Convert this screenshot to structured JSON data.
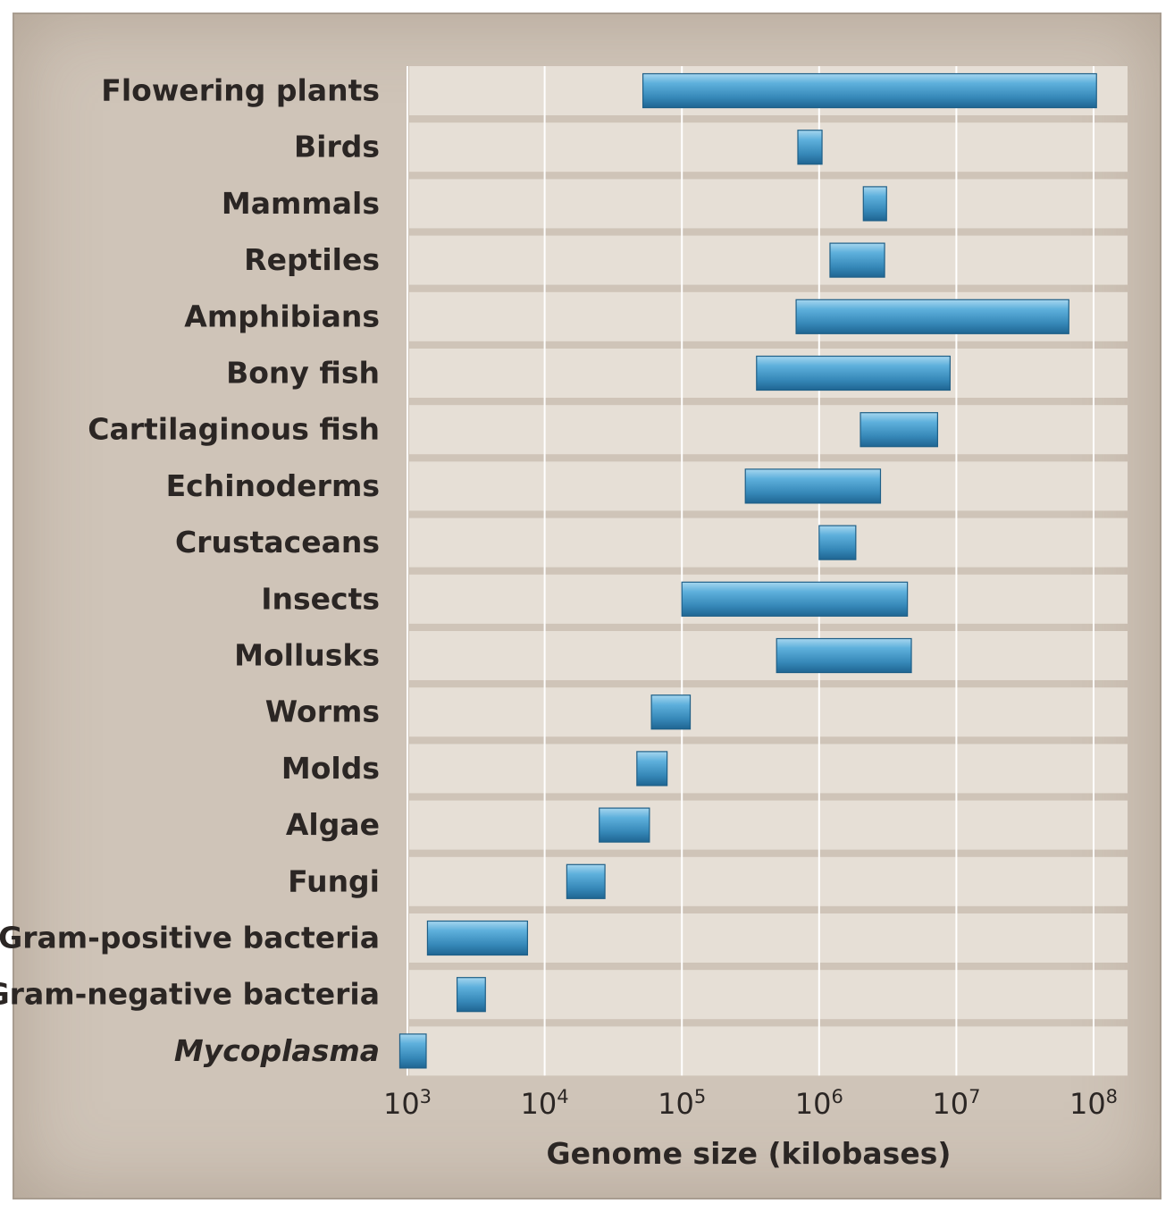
{
  "chart_data": {
    "type": "bar",
    "orientation": "horizontal",
    "subtype": "floating-range",
    "xlabel": "Genome size (kilobases)",
    "xscale": "log",
    "xlim": [
      1000,
      100000000
    ],
    "xticks": [
      {
        "value": 1000,
        "base": "10",
        "exp": "3"
      },
      {
        "value": 10000,
        "base": "10",
        "exp": "4"
      },
      {
        "value": 100000,
        "base": "10",
        "exp": "5"
      },
      {
        "value": 1000000,
        "base": "10",
        "exp": "6"
      },
      {
        "value": 10000000,
        "base": "10",
        "exp": "7"
      },
      {
        "value": 100000000,
        "base": "10",
        "exp": "8"
      }
    ],
    "grid": true,
    "bar_color": "#3b92c0",
    "categories": [
      {
        "label": "Flowering plants",
        "italic": false,
        "range": [
          52000,
          105000000
        ]
      },
      {
        "label": "Birds",
        "italic": false,
        "range": [
          700000,
          1050000
        ]
      },
      {
        "label": "Mammals",
        "italic": false,
        "range": [
          2100000,
          3100000
        ]
      },
      {
        "label": "Reptiles",
        "italic": false,
        "range": [
          1200000,
          3000000
        ]
      },
      {
        "label": "Amphibians",
        "italic": false,
        "range": [
          680000,
          66000000
        ]
      },
      {
        "label": "Bony fish",
        "italic": false,
        "range": [
          350000,
          9000000
        ]
      },
      {
        "label": "Cartilaginous fish",
        "italic": false,
        "range": [
          2000000,
          7300000
        ]
      },
      {
        "label": "Echinoderms",
        "italic": false,
        "range": [
          290000,
          2800000
        ]
      },
      {
        "label": "Crustaceans",
        "italic": false,
        "range": [
          1000000,
          1850000
        ]
      },
      {
        "label": "Insects",
        "italic": false,
        "range": [
          100000,
          4400000
        ]
      },
      {
        "label": "Mollusks",
        "italic": false,
        "range": [
          490000,
          4700000
        ]
      },
      {
        "label": "Worms",
        "italic": false,
        "range": [
          60000,
          115000
        ]
      },
      {
        "label": "Molds",
        "italic": false,
        "range": [
          47000,
          78000
        ]
      },
      {
        "label": "Algae",
        "italic": false,
        "range": [
          25000,
          58000
        ]
      },
      {
        "label": "Fungi",
        "italic": false,
        "range": [
          14500,
          27500
        ]
      },
      {
        "label": "Gram-positive bacteria",
        "italic": false,
        "range": [
          1400,
          7500
        ]
      },
      {
        "label": "Gram-negative bacteria",
        "italic": false,
        "range": [
          2300,
          3700
        ]
      },
      {
        "label": "Mycoplasma",
        "italic": true,
        "range": [
          880,
          1370
        ]
      }
    ]
  }
}
